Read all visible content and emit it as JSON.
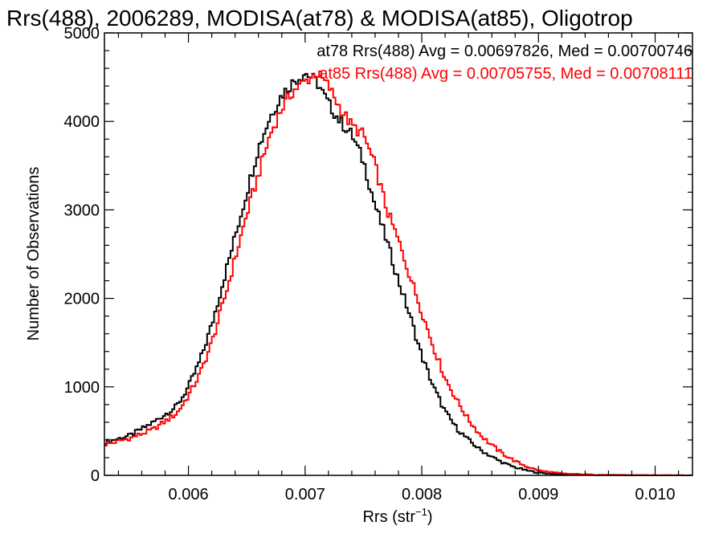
{
  "chart_data": {
    "type": "line",
    "title": "Rrs(488), 2006289, MODISA(at78) & MODISA(at85), Oligotrop",
    "xlabel": "Rrs (str",
    "xlabel_sup": "−1",
    "xlabel_close": ")",
    "ylabel": "Number of Observations",
    "xlim": [
      0.00528,
      0.01032
    ],
    "ylim": [
      0,
      5000
    ],
    "xticks": [
      0.006,
      0.007,
      0.008,
      0.009,
      0.01
    ],
    "xtick_labels": [
      "0.006",
      "0.007",
      "0.008",
      "0.009",
      "0.010"
    ],
    "yticks": [
      0,
      1000,
      2000,
      3000,
      4000,
      5000
    ],
    "ytick_labels": [
      "0",
      "1000",
      "2000",
      "3000",
      "4000",
      "5000"
    ],
    "grid": false,
    "legend_position": "top-right",
    "series": [
      {
        "name": "at78",
        "label": "at78 Rrs(488) Avg = 0.00697826, Med = 0.00700746",
        "color": "#000000",
        "x": [
          0.0053,
          0.0055,
          0.0057,
          0.0059,
          0.006,
          0.0061,
          0.0062,
          0.0063,
          0.0064,
          0.0065,
          0.0066,
          0.0067,
          0.0068,
          0.0069,
          0.007,
          0.0071,
          0.0072,
          0.0073,
          0.0074,
          0.0075,
          0.0076,
          0.0077,
          0.0078,
          0.0079,
          0.008,
          0.0081,
          0.0082,
          0.0083,
          0.0084,
          0.0085,
          0.0086,
          0.0087,
          0.0088,
          0.0089,
          0.009,
          0.0092,
          0.0095,
          0.0098,
          0.0103
        ],
        "y": [
          380,
          450,
          600,
          780,
          1000,
          1300,
          1700,
          2200,
          2700,
          3200,
          3700,
          4050,
          4300,
          4450,
          4550,
          4450,
          4200,
          4000,
          3850,
          3550,
          3050,
          2650,
          2200,
          1800,
          1350,
          1000,
          720,
          530,
          400,
          290,
          210,
          140,
          90,
          55,
          30,
          12,
          4,
          1,
          0
        ]
      },
      {
        "name": "at85",
        "label": "at85 Rrs(488) Avg = 0.00705755, Med = 0.00708111",
        "color": "#ff0000",
        "x": [
          0.0053,
          0.0055,
          0.0057,
          0.0059,
          0.006,
          0.0061,
          0.0062,
          0.0063,
          0.0064,
          0.0065,
          0.0066,
          0.0067,
          0.0068,
          0.0069,
          0.007,
          0.0071,
          0.0072,
          0.0073,
          0.0074,
          0.0075,
          0.0076,
          0.0077,
          0.0078,
          0.0079,
          0.008,
          0.0081,
          0.0082,
          0.0083,
          0.0084,
          0.0085,
          0.0086,
          0.0087,
          0.0088,
          0.0089,
          0.009,
          0.0092,
          0.0095,
          0.0098,
          0.0103
        ],
        "y": [
          350,
          420,
          520,
          700,
          900,
          1150,
          1500,
          1950,
          2450,
          2950,
          3400,
          3850,
          4150,
          4350,
          4450,
          4550,
          4400,
          4150,
          3950,
          3850,
          3500,
          3000,
          2650,
          2250,
          1850,
          1450,
          1100,
          850,
          630,
          460,
          340,
          240,
          160,
          100,
          55,
          20,
          6,
          2,
          0
        ]
      }
    ]
  }
}
